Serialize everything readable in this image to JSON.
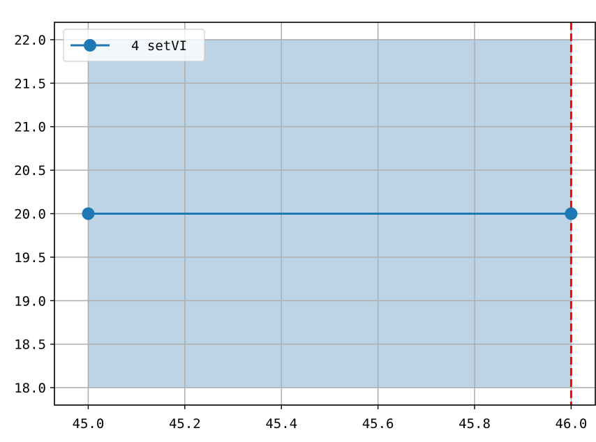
{
  "chart_data": {
    "type": "line",
    "title": "",
    "xlabel": "",
    "ylabel": "",
    "xlim": [
      44.93,
      46.05
    ],
    "ylim": [
      17.8,
      22.2
    ],
    "x_ticks": [
      45.0,
      45.2,
      45.4,
      45.6,
      45.8,
      46.0
    ],
    "x_tick_labels": [
      "45.0",
      "45.2",
      "45.4",
      "45.6",
      "45.8",
      "46.0"
    ],
    "y_ticks": [
      18.0,
      18.5,
      19.0,
      19.5,
      20.0,
      20.5,
      21.0,
      21.5,
      22.0
    ],
    "y_tick_labels": [
      "18.0",
      "18.5",
      "19.0",
      "19.5",
      "20.0",
      "20.5",
      "21.0",
      "21.5",
      "22.0"
    ],
    "grid": true,
    "legend_position": "top-left",
    "series": [
      {
        "name": "4 setVI",
        "x": [
          45.0,
          46.0
        ],
        "y": [
          20.0,
          20.0
        ],
        "color": "#1f77b4",
        "marker": "circle"
      }
    ],
    "shaded_region": {
      "x": [
        45.0,
        46.0
      ],
      "y": [
        18.0,
        22.0
      ],
      "color": "#bcd4e6"
    },
    "vertical_line": {
      "x": 46.0,
      "color": "#ff0000",
      "style": "dashed"
    }
  }
}
